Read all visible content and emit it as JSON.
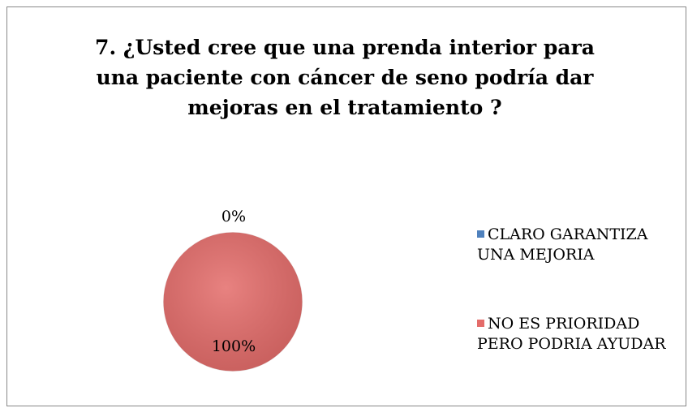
{
  "chart_data": {
    "type": "pie",
    "title": "7. ¿Usted cree que una prenda interior  para una paciente con cáncer de seno podría dar mejoras en el tratamiento ?",
    "categories": [
      "CLARO GARANTIZA UNA MEJORIA",
      "NO ES PRIORIDAD PERO PODRIA AYUDAR"
    ],
    "values": [
      0,
      100
    ],
    "value_labels": [
      "0%",
      "100%"
    ],
    "colors": [
      "#4f81bd",
      "#e46c6a"
    ],
    "legend": "right"
  }
}
